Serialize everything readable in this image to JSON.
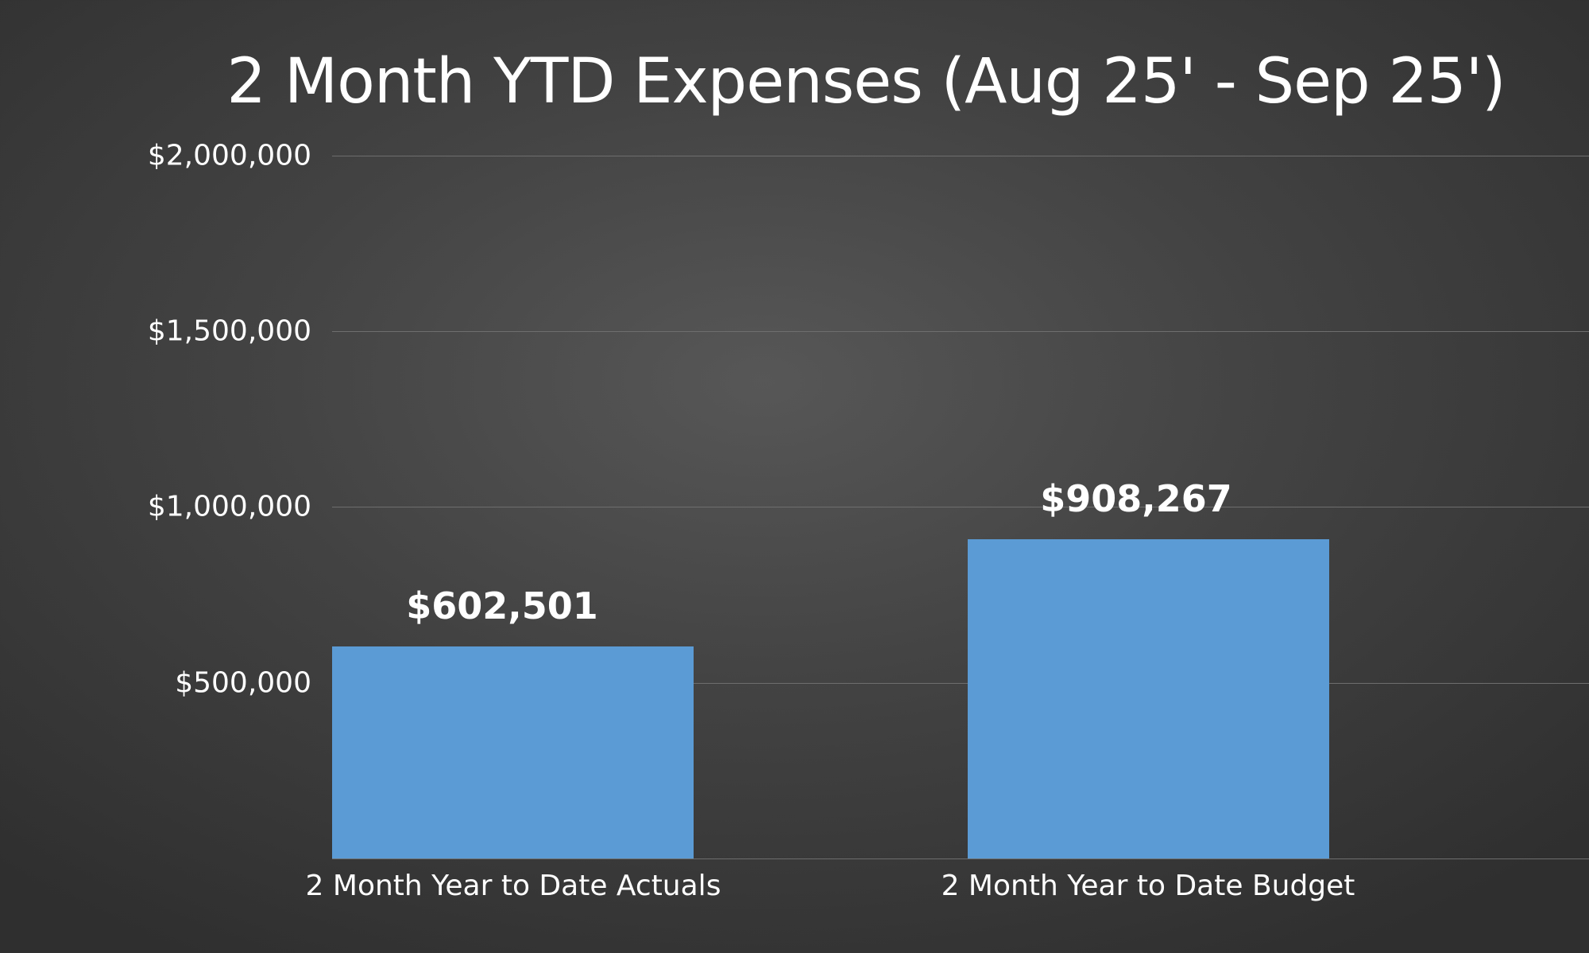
{
  "chart_data": {
    "type": "bar",
    "title": "2 Month YTD Expenses (Aug 25' - Sep 25')",
    "categories": [
      "2 Month Year to Date Actuals",
      "2 Month Year to Date Budget"
    ],
    "values": [
      602501,
      908267
    ],
    "data_labels": [
      "$602,501",
      "$908,267"
    ],
    "xlabel": "",
    "ylabel": "",
    "ylim": [
      0,
      2000000
    ],
    "yticks": [
      500000,
      1000000,
      1500000,
      2000000
    ],
    "ytick_labels": [
      "$500,000",
      "$1,000,000",
      "$1,500,000",
      "$2,000,000"
    ],
    "grid": true,
    "legend": null,
    "bar_color": "#5b9bd5",
    "background": "#444444"
  }
}
